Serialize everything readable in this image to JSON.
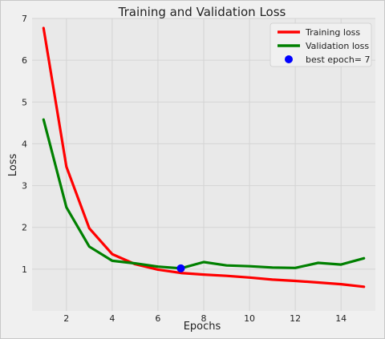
{
  "chart_data": {
    "type": "line",
    "title": "Training and Validation Loss",
    "xlabel": "Epochs",
    "ylabel": "Loss",
    "xlim": [
      0.5,
      15.5
    ],
    "ylim": [
      0,
      7
    ],
    "xticks": [
      2,
      4,
      6,
      8,
      10,
      12,
      14
    ],
    "yticks": [
      1,
      2,
      3,
      4,
      5,
      6,
      7
    ],
    "grid": true,
    "legend_position": "top-right",
    "x": [
      1,
      2,
      3,
      4,
      5,
      6,
      7,
      8,
      9,
      10,
      11,
      12,
      13,
      14,
      15
    ],
    "series": [
      {
        "name": "Training loss",
        "color": "#ff0000",
        "values": [
          6.77,
          3.45,
          1.98,
          1.36,
          1.12,
          0.99,
          0.91,
          0.87,
          0.84,
          0.8,
          0.75,
          0.72,
          0.68,
          0.64,
          0.58
        ]
      },
      {
        "name": "Validation loss",
        "color": "#008000",
        "values": [
          4.58,
          2.48,
          1.54,
          1.2,
          1.14,
          1.06,
          1.02,
          1.17,
          1.09,
          1.07,
          1.04,
          1.03,
          1.15,
          1.11,
          1.26
        ]
      }
    ],
    "best_point": {
      "label": "best epoch= 7",
      "x": 7,
      "y": 1.02,
      "color": "#0000ff"
    }
  }
}
